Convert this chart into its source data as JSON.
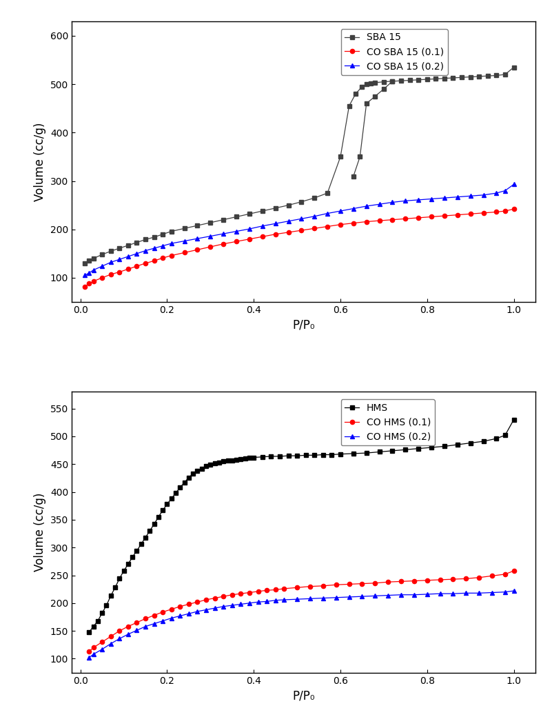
{
  "top_chart": {
    "xlabel": "P/P₀",
    "ylabel": "Volume (cc/g)",
    "xlim": [
      -0.02,
      1.05
    ],
    "ylim": [
      50,
      630
    ],
    "yticks": [
      100,
      200,
      300,
      400,
      500,
      600
    ],
    "xticks": [
      0.0,
      0.2,
      0.4,
      0.6,
      0.8,
      1.0
    ],
    "legend_labels": [
      "SBA 15",
      "CO SBA 15 (0.1)",
      "CO SBA 15 (0.2)"
    ],
    "series": {
      "SBA15_ads": {
        "color": "#404040",
        "marker": "s",
        "linestyle": "-",
        "x": [
          0.01,
          0.02,
          0.03,
          0.05,
          0.07,
          0.09,
          0.11,
          0.13,
          0.15,
          0.17,
          0.19,
          0.21,
          0.24,
          0.27,
          0.3,
          0.33,
          0.36,
          0.39,
          0.42,
          0.45,
          0.48,
          0.51,
          0.54,
          0.57,
          0.6,
          0.62,
          0.635,
          0.65,
          0.66,
          0.67,
          0.68,
          0.7,
          0.72,
          0.74,
          0.76,
          0.78,
          0.8,
          0.82,
          0.84,
          0.86,
          0.88,
          0.9,
          0.92,
          0.94,
          0.96,
          0.98,
          1.0
        ],
        "y": [
          130,
          135,
          140,
          148,
          155,
          161,
          167,
          173,
          179,
          184,
          190,
          196,
          202,
          208,
          214,
          220,
          226,
          232,
          238,
          244,
          250,
          257,
          265,
          275,
          350,
          455,
          480,
          495,
          500,
          502,
          503,
          505,
          506,
          507,
          508,
          509,
          510,
          511,
          512,
          513,
          514,
          515,
          516,
          517,
          518,
          520,
          535
        ]
      },
      "SBA15_des": {
        "color": "#404040",
        "marker": "s",
        "linestyle": "-",
        "x": [
          0.72,
          0.7,
          0.68,
          0.66,
          0.645,
          0.63
        ],
        "y": [
          506,
          490,
          475,
          460,
          350,
          310
        ]
      },
      "CO_SBA15_01": {
        "color": "#ff0000",
        "marker": "o",
        "linestyle": "-",
        "x": [
          0.01,
          0.02,
          0.03,
          0.05,
          0.07,
          0.09,
          0.11,
          0.13,
          0.15,
          0.17,
          0.19,
          0.21,
          0.24,
          0.27,
          0.3,
          0.33,
          0.36,
          0.39,
          0.42,
          0.45,
          0.48,
          0.51,
          0.54,
          0.57,
          0.6,
          0.63,
          0.66,
          0.69,
          0.72,
          0.75,
          0.78,
          0.81,
          0.84,
          0.87,
          0.9,
          0.93,
          0.96,
          0.98,
          1.0
        ],
        "y": [
          82,
          88,
          93,
          100,
          107,
          112,
          118,
          124,
          130,
          135,
          141,
          146,
          152,
          158,
          164,
          170,
          175,
          180,
          185,
          190,
          194,
          198,
          202,
          206,
          210,
          213,
          216,
          218,
          220,
          222,
          224,
          226,
          228,
          230,
          232,
          234,
          236,
          238,
          242
        ]
      },
      "CO_SBA15_02": {
        "color": "#0000ff",
        "marker": "^",
        "linestyle": "-",
        "x": [
          0.01,
          0.02,
          0.03,
          0.05,
          0.07,
          0.09,
          0.11,
          0.13,
          0.15,
          0.17,
          0.19,
          0.21,
          0.24,
          0.27,
          0.3,
          0.33,
          0.36,
          0.39,
          0.42,
          0.45,
          0.48,
          0.51,
          0.54,
          0.57,
          0.6,
          0.63,
          0.66,
          0.69,
          0.72,
          0.75,
          0.78,
          0.81,
          0.84,
          0.87,
          0.9,
          0.93,
          0.96,
          0.98,
          1.0
        ],
        "y": [
          105,
          110,
          116,
          124,
          132,
          138,
          144,
          150,
          156,
          161,
          166,
          171,
          176,
          181,
          186,
          191,
          196,
          201,
          207,
          212,
          217,
          222,
          227,
          233,
          238,
          243,
          248,
          252,
          256,
          259,
          261,
          263,
          265,
          267,
          269,
          271,
          275,
          280,
          293
        ]
      }
    }
  },
  "bottom_chart": {
    "xlabel": "P/P₀",
    "ylabel": "Volume (cc/g)",
    "xlim": [
      -0.02,
      1.05
    ],
    "ylim": [
      75,
      580
    ],
    "yticks": [
      100,
      150,
      200,
      250,
      300,
      350,
      400,
      450,
      500,
      550
    ],
    "xticks": [
      0.0,
      0.2,
      0.4,
      0.6,
      0.8,
      1.0
    ],
    "legend_labels": [
      "HMS",
      "CO HMS (0.1)",
      "CO HMS (0.2)"
    ],
    "series": {
      "HMS": {
        "color": "#000000",
        "marker": "s",
        "linestyle": "-",
        "x": [
          0.02,
          0.03,
          0.04,
          0.05,
          0.06,
          0.07,
          0.08,
          0.09,
          0.1,
          0.11,
          0.12,
          0.13,
          0.14,
          0.15,
          0.16,
          0.17,
          0.18,
          0.19,
          0.2,
          0.21,
          0.22,
          0.23,
          0.24,
          0.25,
          0.26,
          0.27,
          0.28,
          0.29,
          0.3,
          0.31,
          0.32,
          0.33,
          0.34,
          0.35,
          0.36,
          0.37,
          0.38,
          0.39,
          0.4,
          0.42,
          0.44,
          0.46,
          0.48,
          0.5,
          0.52,
          0.54,
          0.56,
          0.58,
          0.6,
          0.63,
          0.66,
          0.69,
          0.72,
          0.75,
          0.78,
          0.81,
          0.84,
          0.87,
          0.9,
          0.93,
          0.96,
          0.98,
          1.0
        ],
        "y": [
          148,
          158,
          168,
          182,
          196,
          213,
          228,
          244,
          258,
          270,
          283,
          294,
          306,
          318,
          330,
          342,
          355,
          367,
          378,
          388,
          398,
          408,
          417,
          426,
          433,
          438,
          442,
          446,
          449,
          452,
          453,
          455,
          456,
          457,
          458,
          459,
          460,
          461,
          462,
          463,
          464,
          464,
          465,
          465,
          466,
          466,
          467,
          467,
          468,
          469,
          470,
          472,
          474,
          476,
          478,
          480,
          482,
          485,
          488,
          491,
          496,
          502,
          530
        ]
      },
      "CO_HMS_01": {
        "color": "#ff0000",
        "marker": "o",
        "linestyle": "-",
        "x": [
          0.02,
          0.03,
          0.05,
          0.07,
          0.09,
          0.11,
          0.13,
          0.15,
          0.17,
          0.19,
          0.21,
          0.23,
          0.25,
          0.27,
          0.29,
          0.31,
          0.33,
          0.35,
          0.37,
          0.39,
          0.41,
          0.43,
          0.45,
          0.47,
          0.5,
          0.53,
          0.56,
          0.59,
          0.62,
          0.65,
          0.68,
          0.71,
          0.74,
          0.77,
          0.8,
          0.83,
          0.86,
          0.89,
          0.92,
          0.95,
          0.98,
          1.0
        ],
        "y": [
          113,
          120,
          130,
          140,
          150,
          158,
          165,
          172,
          178,
          184,
          189,
          194,
          198,
          202,
          206,
          209,
          212,
          215,
          217,
          219,
          221,
          223,
          224,
          226,
          228,
          230,
          231,
          233,
          234,
          235,
          236,
          238,
          239,
          240,
          241,
          242,
          243,
          244,
          246,
          249,
          252,
          258
        ]
      },
      "CO_HMS_02": {
        "color": "#0000ff",
        "marker": "^",
        "linestyle": "-",
        "x": [
          0.02,
          0.03,
          0.05,
          0.07,
          0.09,
          0.11,
          0.13,
          0.15,
          0.17,
          0.19,
          0.21,
          0.23,
          0.25,
          0.27,
          0.29,
          0.31,
          0.33,
          0.35,
          0.37,
          0.39,
          0.41,
          0.43,
          0.45,
          0.47,
          0.5,
          0.53,
          0.56,
          0.59,
          0.62,
          0.65,
          0.68,
          0.71,
          0.74,
          0.77,
          0.8,
          0.83,
          0.86,
          0.89,
          0.92,
          0.95,
          0.98,
          1.0
        ],
        "y": [
          102,
          108,
          117,
          127,
          136,
          144,
          151,
          158,
          163,
          168,
          173,
          177,
          181,
          185,
          188,
          191,
          194,
          196,
          198,
          200,
          202,
          203,
          205,
          206,
          207,
          208,
          209,
          210,
          211,
          212,
          213,
          214,
          215,
          215,
          216,
          217,
          217,
          218,
          218,
          219,
          220,
          222
        ]
      }
    }
  }
}
